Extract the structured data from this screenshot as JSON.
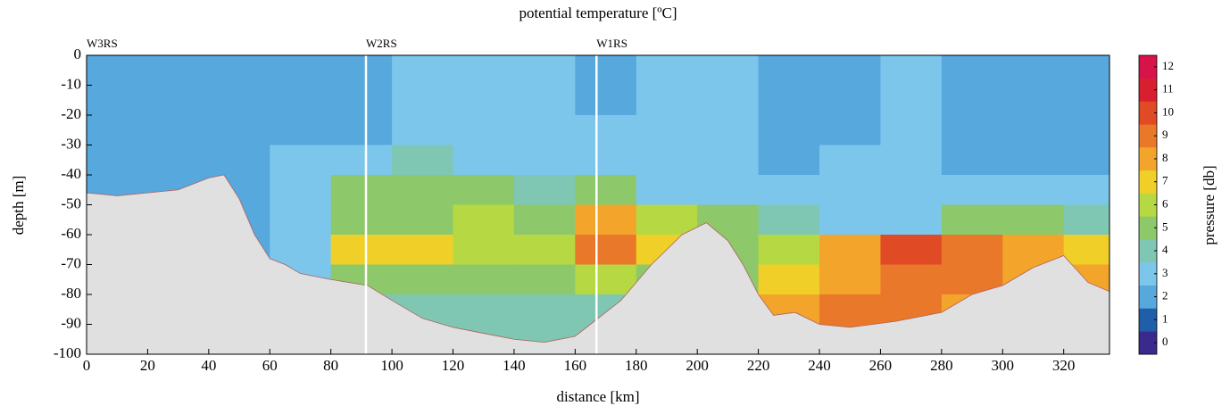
{
  "chart_data": {
    "type": "contour",
    "title": "potential temperature [ºC]",
    "x_label": "distance [km]",
    "y_label": "depth [m]",
    "colorbar_label": "pressure [db]",
    "xlim": [
      0,
      335
    ],
    "ylim": [
      -100,
      0
    ],
    "xticks": [
      0,
      20,
      40,
      60,
      80,
      100,
      120,
      140,
      160,
      180,
      200,
      220,
      240,
      260,
      280,
      300,
      320
    ],
    "yticks": [
      0,
      -10,
      -20,
      -30,
      -40,
      -50,
      -60,
      -70,
      -80,
      -90,
      -100
    ],
    "stations": [
      {
        "name": "W3RS",
        "x": 0
      },
      {
        "name": "W2RS",
        "x": 91.5
      },
      {
        "name": "W1RS",
        "x": 167
      }
    ],
    "field": {
      "x_edges": [
        0,
        20,
        40,
        60,
        80,
        100,
        120,
        140,
        160,
        180,
        200,
        220,
        240,
        260,
        280,
        300,
        320,
        335
      ],
      "depth_edges": [
        0,
        -10,
        -20,
        -30,
        -40,
        -50,
        -60,
        -70,
        -80,
        -90,
        -100
      ],
      "values": [
        [
          1.8,
          2.2,
          2.2,
          2.2,
          2.2,
          2.6,
          2.6,
          2.6,
          2.2,
          2.6,
          2.6,
          2.2,
          2.2,
          2.6,
          2.2,
          2.2,
          2.2
        ],
        [
          1.8,
          2.2,
          2.2,
          2.2,
          2.4,
          2.6,
          2.6,
          2.6,
          2.4,
          2.6,
          2.6,
          2.2,
          2.4,
          2.6,
          2.2,
          2.2,
          2.2
        ],
        [
          1.8,
          2.0,
          2.2,
          2.2,
          2.4,
          2.6,
          3.2,
          3.2,
          2.6,
          3.2,
          2.6,
          2.4,
          2.4,
          2.6,
          2.4,
          2.2,
          2.2
        ],
        [
          1.6,
          1.8,
          2.2,
          2.6,
          3.0,
          3.5,
          3.4,
          3.2,
          2.6,
          3.2,
          2.6,
          2.4,
          2.6,
          2.6,
          2.4,
          2.4,
          2.4
        ],
        [
          1.8,
          1.8,
          2.2,
          2.6,
          4.5,
          4.8,
          4.6,
          3.6,
          4.5,
          3.2,
          3.0,
          2.6,
          2.6,
          2.6,
          2.6,
          2.6,
          2.6
        ],
        [
          1.8,
          1.8,
          2.2,
          2.6,
          5.0,
          5.0,
          5.5,
          5.0,
          7.5,
          6.0,
          5.0,
          3.6,
          3.0,
          3.0,
          4.5,
          4.5,
          3.5
        ],
        [
          1.8,
          1.8,
          2.2,
          2.6,
          6.5,
          6.5,
          6.0,
          6.0,
          8.5,
          6.5,
          4.5,
          5.5,
          7.5,
          9.5,
          9.0,
          7.5,
          6.5
        ],
        [
          1.8,
          1.8,
          2.2,
          2.6,
          4.5,
          4.5,
          5.0,
          5.0,
          5.5,
          4.5,
          4.5,
          7.0,
          8.0,
          9.0,
          9.0,
          7.5,
          7.5
        ],
        [
          1.8,
          1.8,
          2.2,
          2.6,
          3.5,
          3.5,
          3.5,
          3.5,
          3.5,
          4.5,
          7.0,
          7.5,
          8.5,
          9.0,
          8.0,
          8.0,
          8.0
        ],
        [
          1.8,
          1.8,
          2.2,
          2.6,
          3.5,
          3.5,
          3.5,
          3.5,
          3.5,
          4.5,
          7.0,
          7.5,
          8.5,
          9.0,
          8.0,
          8.0,
          8.0
        ]
      ]
    },
    "bathymetry": {
      "x": [
        0,
        10,
        20,
        30,
        40,
        45,
        50,
        55,
        60,
        65,
        70,
        80,
        92,
        100,
        110,
        120,
        130,
        140,
        150,
        160,
        165,
        175,
        185,
        195,
        203,
        210,
        215,
        220,
        225,
        232,
        240,
        250,
        265,
        280,
        290,
        300,
        310,
        320,
        328,
        335
      ],
      "depth": [
        -46,
        -47,
        -46,
        -45,
        -41,
        -40,
        -48,
        -60,
        -68,
        -70,
        -73,
        -75,
        -77,
        -82,
        -88,
        -91,
        -93,
        -95,
        -96,
        -94,
        -90,
        -82,
        -70,
        -60,
        -56,
        -62,
        -70,
        -80,
        -87,
        -86,
        -90,
        -91,
        -89,
        -86,
        -80,
        -77,
        -71,
        -67,
        -76,
        -79
      ],
      "color": "#e0e0e0"
    },
    "colorbar": {
      "levels": [
        -0.5,
        0.5,
        1.5,
        2.5,
        3.5,
        4.5,
        5.5,
        6.5,
        7.5,
        8.5,
        9.5,
        10.5,
        11.5,
        12.5
      ],
      "colors": [
        "#3b2a8e",
        "#1f5ea8",
        "#56a8dd",
        "#7cc6ec",
        "#7fc7b2",
        "#8dc86a",
        "#b6d843",
        "#f0d028",
        "#f3a52b",
        "#e9782a",
        "#e04a25",
        "#d81f30",
        "#d8124a"
      ],
      "ticks": [
        0,
        1,
        2,
        3,
        4,
        5,
        6,
        7,
        8,
        9,
        10,
        11,
        12
      ]
    }
  }
}
